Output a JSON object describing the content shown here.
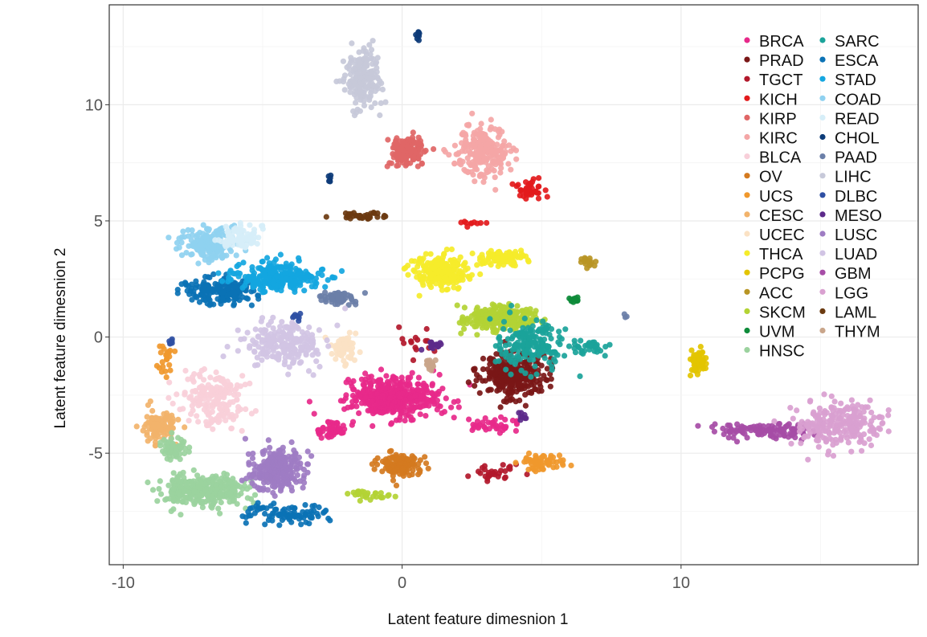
{
  "chart_data": {
    "type": "scatter",
    "xlabel": "Latent feature dimesnion 1",
    "ylabel": "Latent feature dimesnion 2",
    "xlim": [
      -10.5,
      18.5
    ],
    "ylim": [
      -9.8,
      14.3
    ],
    "x_ticks": [
      -10,
      0,
      10
    ],
    "y_ticks": [
      -5,
      0,
      5,
      10
    ],
    "x_tick_labels": [
      "-10",
      "0",
      "10"
    ],
    "y_tick_labels": [
      "-5",
      "0",
      "5",
      "10"
    ],
    "grid": true,
    "legend_position": "top-right",
    "series": [
      {
        "name": "BRCA",
        "color": "#e7298a",
        "clusters": [
          [
            -0.3,
            -2.6,
            1.4,
            0.8,
            450
          ],
          [
            -2.5,
            -4.0,
            0.4,
            0.4,
            50
          ],
          [
            3.2,
            -3.8,
            1.0,
            0.3,
            40
          ]
        ]
      },
      {
        "name": "PRAD",
        "color": "#7a1717",
        "clusters": [
          [
            4.0,
            -1.6,
            1.1,
            0.9,
            300
          ]
        ]
      },
      {
        "name": "TGCT",
        "color": "#b2182b",
        "clusters": [
          [
            3.2,
            -5.8,
            0.8,
            0.35,
            30
          ],
          [
            0.5,
            -0.2,
            0.5,
            0.5,
            15
          ]
        ]
      },
      {
        "name": "KICH",
        "color": "#e31a1c",
        "clusters": [
          [
            4.6,
            6.3,
            0.5,
            0.5,
            40
          ],
          [
            2.5,
            4.9,
            0.4,
            0.1,
            10
          ]
        ]
      },
      {
        "name": "KIRP",
        "color": "#e06666",
        "clusters": [
          [
            0.2,
            8.0,
            0.5,
            0.6,
            150
          ]
        ]
      },
      {
        "name": "KIRC",
        "color": "#f4a6a6",
        "clusters": [
          [
            2.9,
            8.0,
            0.9,
            1.0,
            250
          ]
        ]
      },
      {
        "name": "BLCA",
        "color": "#f8cfd9",
        "clusters": [
          [
            -6.7,
            -2.6,
            1.1,
            1.0,
            200
          ]
        ]
      },
      {
        "name": "OV",
        "color": "#d47a1f",
        "clusters": [
          [
            -0.1,
            -5.5,
            0.7,
            0.45,
            120
          ]
        ]
      },
      {
        "name": "UCS",
        "color": "#f0982c",
        "clusters": [
          [
            5.0,
            -5.4,
            0.9,
            0.4,
            60
          ],
          [
            -8.5,
            -1.0,
            0.3,
            0.6,
            25
          ]
        ]
      },
      {
        "name": "CESC",
        "color": "#f2b36b",
        "clusters": [
          [
            -8.7,
            -3.8,
            0.5,
            0.6,
            110
          ]
        ]
      },
      {
        "name": "UCEC",
        "color": "#fbe2c4",
        "clusters": [
          [
            -2.1,
            -0.5,
            0.4,
            0.6,
            70
          ]
        ]
      },
      {
        "name": "THCA",
        "color": "#f5ec2a",
        "clusters": [
          [
            1.4,
            2.8,
            0.9,
            0.6,
            250
          ],
          [
            3.7,
            3.4,
            0.9,
            0.3,
            90
          ]
        ]
      },
      {
        "name": "PCPG",
        "color": "#e3c400",
        "clusters": [
          [
            10.6,
            -1.1,
            0.3,
            0.4,
            60
          ]
        ]
      },
      {
        "name": "ACC",
        "color": "#b89524",
        "clusters": [
          [
            6.7,
            3.2,
            0.2,
            0.25,
            15
          ]
        ]
      },
      {
        "name": "SKCM",
        "color": "#b3d334",
        "clusters": [
          [
            3.6,
            0.8,
            1.1,
            0.5,
            250
          ],
          [
            -1.2,
            -6.8,
            0.6,
            0.2,
            30
          ]
        ]
      },
      {
        "name": "UVM",
        "color": "#0e8b3a",
        "clusters": [
          [
            6.2,
            1.6,
            0.2,
            0.15,
            15
          ]
        ]
      },
      {
        "name": "HNSC",
        "color": "#9bd29e",
        "clusters": [
          [
            -7.2,
            -6.6,
            1.5,
            0.6,
            350
          ],
          [
            -8.2,
            -4.8,
            0.5,
            0.4,
            60
          ]
        ]
      },
      {
        "name": "SARC",
        "color": "#1aa39a",
        "clusters": [
          [
            4.6,
            -0.3,
            1.2,
            0.9,
            180
          ],
          [
            6.8,
            -0.5,
            0.6,
            0.3,
            30
          ]
        ]
      },
      {
        "name": "ESCA",
        "color": "#0b72b5",
        "clusters": [
          [
            -6.5,
            2.0,
            1.3,
            0.5,
            200
          ],
          [
            -4.2,
            -7.6,
            1.4,
            0.4,
            90
          ]
        ]
      },
      {
        "name": "STAD",
        "color": "#14a6e0",
        "clusters": [
          [
            -4.5,
            2.6,
            1.4,
            0.6,
            260
          ]
        ]
      },
      {
        "name": "COAD",
        "color": "#8fd1f0",
        "clusters": [
          [
            -6.9,
            4.0,
            0.9,
            0.6,
            170
          ]
        ]
      },
      {
        "name": "READ",
        "color": "#d6eef8",
        "clusters": [
          [
            -5.8,
            4.3,
            0.7,
            0.5,
            80
          ]
        ]
      },
      {
        "name": "CHOL",
        "color": "#0d3b78",
        "clusters": [
          [
            0.6,
            13.0,
            0.1,
            0.2,
            8
          ],
          [
            -2.6,
            6.8,
            0.1,
            0.2,
            6
          ]
        ]
      },
      {
        "name": "PAAD",
        "color": "#6b7fa8",
        "clusters": [
          [
            -2.3,
            1.7,
            0.6,
            0.3,
            60
          ],
          [
            8.0,
            1.0,
            0.1,
            0.1,
            3
          ]
        ]
      },
      {
        "name": "LIHC",
        "color": "#c7c9d9",
        "clusters": [
          [
            -1.4,
            11.1,
            0.6,
            1.1,
            200
          ]
        ]
      },
      {
        "name": "DLBC",
        "color": "#2e4fa3",
        "clusters": [
          [
            -8.3,
            -0.2,
            0.1,
            0.15,
            6
          ],
          [
            -3.8,
            0.9,
            0.2,
            0.2,
            8
          ]
        ]
      },
      {
        "name": "MESO",
        "color": "#5c2a8a",
        "clusters": [
          [
            1.1,
            -0.4,
            0.3,
            0.2,
            15
          ],
          [
            4.3,
            -3.4,
            0.2,
            0.2,
            8
          ]
        ]
      },
      {
        "name": "LUSC",
        "color": "#9e7cc3",
        "clusters": [
          [
            -4.5,
            -5.7,
            0.9,
            0.8,
            250
          ]
        ]
      },
      {
        "name": "LUAD",
        "color": "#d1c4e4",
        "clusters": [
          [
            -4.2,
            -0.3,
            1.2,
            0.9,
            220
          ]
        ]
      },
      {
        "name": "GBM",
        "color": "#a64ca6",
        "clusters": [
          [
            13.2,
            -4.0,
            1.8,
            0.35,
            110
          ]
        ]
      },
      {
        "name": "LGG",
        "color": "#d9a0d0",
        "clusters": [
          [
            15.7,
            -3.8,
            1.3,
            0.9,
            230
          ]
        ]
      },
      {
        "name": "LAML",
        "color": "#6b3a10",
        "clusters": [
          [
            -1.3,
            5.2,
            0.9,
            0.15,
            35
          ]
        ]
      },
      {
        "name": "THYM",
        "color": "#c9a58a",
        "clusters": [
          [
            1.0,
            -1.2,
            0.2,
            0.25,
            15
          ]
        ]
      }
    ]
  }
}
